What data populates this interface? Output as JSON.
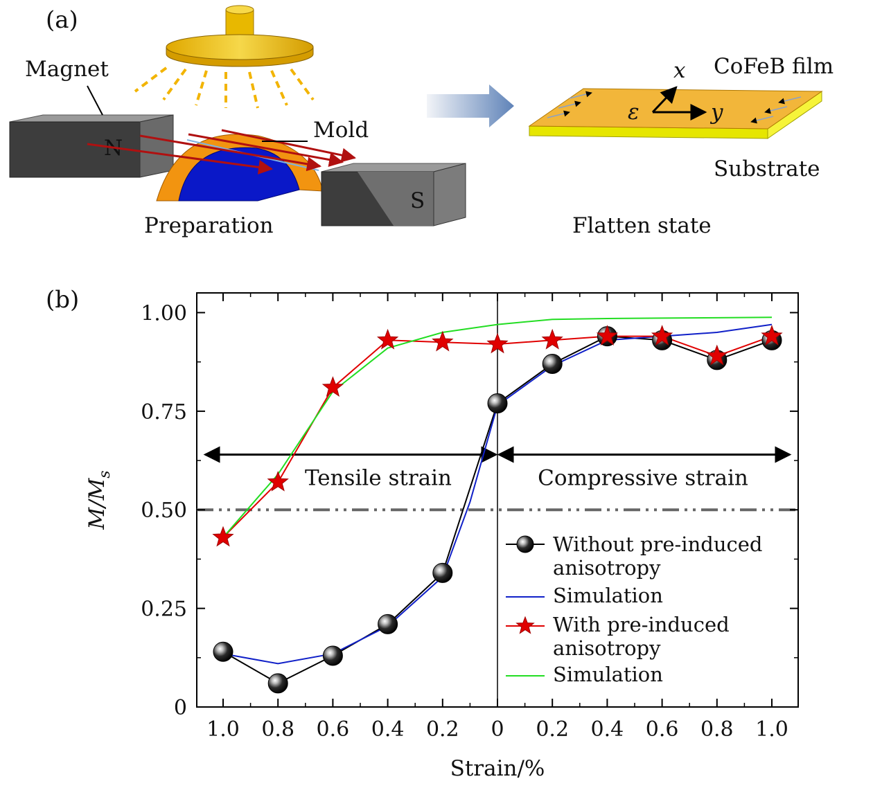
{
  "panel_a": {
    "label": "(a)",
    "magnet_label": "Magnet",
    "mold_label": "Mold",
    "north_label": "N",
    "south_label": "S",
    "preparation_label": "Preparation",
    "film_label": "CoFeB film",
    "substrate_label": "Substrate",
    "flatten_label": "Flatten state",
    "axis_x": "x",
    "axis_y": "y",
    "strain_symbol": "ε"
  },
  "chart_data": {
    "type": "line",
    "panel_label": "(b)",
    "xlabel": "Strain/%",
    "ylabel": "M/M",
    "ylabel_sub": "s",
    "x_positions": [
      -1.0,
      -0.8,
      -0.6,
      -0.4,
      -0.2,
      0,
      0.2,
      0.4,
      0.6,
      0.8,
      1.0
    ],
    "categories": [
      "1.0",
      "0.8",
      "0.6",
      "0.4",
      "0.2",
      "0",
      "0.2",
      "0.4",
      "0.6",
      "0.8",
      "1.0"
    ],
    "xlim": [
      -1.1,
      1.1
    ],
    "ylim": [
      0,
      1.05
    ],
    "yticks": [
      0,
      0.25,
      0.5,
      0.75,
      1.0
    ],
    "ytick_labels": [
      "0",
      "0.25",
      "0.50",
      "0.75",
      "1.00"
    ],
    "reference_line": 0.5,
    "regions": [
      {
        "label": "Tensile strain",
        "from": -1.0,
        "to": 0
      },
      {
        "label": "Compressive strain",
        "from": 0,
        "to": 1.0
      }
    ],
    "series": [
      {
        "name": "Without pre-induced anisotropy",
        "marker": "sphere",
        "color": "#000000",
        "x": [
          -1.0,
          -0.8,
          -0.6,
          -0.4,
          -0.2,
          0,
          0.2,
          0.4,
          0.6,
          0.8,
          1.0
        ],
        "y": [
          0.14,
          0.06,
          0.13,
          0.21,
          0.34,
          0.77,
          0.87,
          0.94,
          0.93,
          0.88,
          0.93
        ]
      },
      {
        "name": "Simulation",
        "marker": "none",
        "color": "#1020c8",
        "x": [
          -1.0,
          -0.8,
          -0.6,
          -0.4,
          -0.2,
          -0.1,
          0,
          0.2,
          0.4,
          0.6,
          0.8,
          1.0
        ],
        "y": [
          0.135,
          0.11,
          0.135,
          0.205,
          0.33,
          0.52,
          0.765,
          0.865,
          0.93,
          0.94,
          0.95,
          0.97
        ]
      },
      {
        "name": "With pre-induced anisotropy",
        "marker": "star",
        "color": "#e00000",
        "x": [
          -1.0,
          -0.8,
          -0.6,
          -0.4,
          -0.2,
          0,
          0.2,
          0.4,
          0.6,
          0.8,
          1.0
        ],
        "y": [
          0.43,
          0.57,
          0.81,
          0.93,
          0.925,
          0.92,
          0.93,
          0.94,
          0.94,
          0.89,
          0.94
        ]
      },
      {
        "name": "Simulation",
        "marker": "none",
        "color": "#22dd22",
        "x": [
          -1.0,
          -0.8,
          -0.6,
          -0.4,
          -0.2,
          0,
          0.2,
          0.4,
          0.6,
          0.8,
          1.0
        ],
        "y": [
          0.43,
          0.59,
          0.8,
          0.91,
          0.95,
          0.97,
          0.983,
          0.985,
          0.986,
          0.987,
          0.988
        ]
      }
    ],
    "legend_lines": [
      "Without pre-induced",
      "anisotropy",
      "Simulation",
      "With pre-induced",
      "anisotropy",
      "Simulation"
    ],
    "legend_position": "lower-right"
  }
}
